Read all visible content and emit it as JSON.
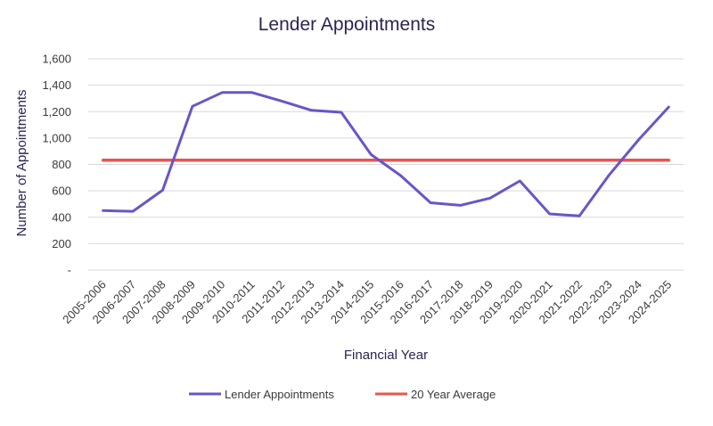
{
  "chart_data": {
    "type": "line",
    "title": "Lender Appointments",
    "xlabel": "Financial Year",
    "ylabel": "Number of Appointments",
    "categories": [
      "2005-2006",
      "2006-2007",
      "2007-2008",
      "2008-2009",
      "2009-2010",
      "2010-2011",
      "2011-2012",
      "2012-2013",
      "2013-2014",
      "2014-2015",
      "2015-2016",
      "2016-2017",
      "2017-2018",
      "2018-2019",
      "2019-2020",
      "2020-2021",
      "2021-2022",
      "2022-2023",
      "2023-2024",
      "2024-2025"
    ],
    "series": [
      {
        "name": "Lender Appointments",
        "color": "#6a55c8",
        "values": [
          450,
          445,
          605,
          1240,
          1345,
          1345,
          1280,
          1210,
          1195,
          875,
          715,
          510,
          490,
          545,
          675,
          425,
          410,
          720,
          990,
          1235
        ]
      },
      {
        "name": "20 Year Average",
        "color": "#e8544e",
        "values": [
          832,
          832,
          832,
          832,
          832,
          832,
          832,
          832,
          832,
          832,
          832,
          832,
          832,
          832,
          832,
          832,
          832,
          832,
          832,
          832
        ]
      }
    ],
    "ylim": [
      0,
      1600
    ],
    "yticks": [
      0,
      200,
      400,
      600,
      800,
      1000,
      1200,
      1400,
      1600
    ],
    "ytick_labels": [
      "-",
      "200",
      "400",
      "600",
      "800",
      "1,000",
      "1,200",
      "1,400",
      "1,600"
    ],
    "grid": true,
    "legend": "bottom"
  }
}
